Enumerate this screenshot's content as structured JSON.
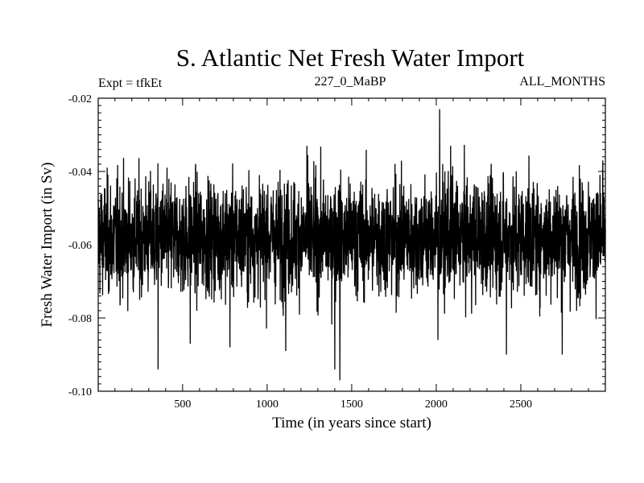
{
  "chart_data": {
    "type": "line",
    "title": "S. Atlantic Net Fresh Water Import",
    "subtitle": "227_0_MaBP",
    "experiment_label": "Expt = tfkEt",
    "months_label": "ALL_MONTHS",
    "xlabel": "Time (in years since start)",
    "ylabel": "Fresh Water Import (in Sv)",
    "xlim": [
      1,
      3000
    ],
    "ylim": [
      -0.1,
      -0.02
    ],
    "x_ticks": [
      500,
      1000,
      1500,
      2000,
      2500
    ],
    "y_ticks": [
      -0.02,
      -0.04,
      -0.06,
      -0.08,
      -0.1
    ],
    "y_tick_labels": [
      "-0.02",
      "-0.04",
      "-0.06",
      "-0.08",
      "-0.10"
    ],
    "grid": false,
    "series": [
      {
        "color": "#000000",
        "mean": -0.058,
        "typical_range": [
          -0.075,
          -0.042
        ],
        "n_points": 3000,
        "notable_points": [
          {
            "x": 355,
            "y": -0.094
          },
          {
            "x": 545,
            "y": -0.087
          },
          {
            "x": 780,
            "y": -0.088
          },
          {
            "x": 1110,
            "y": -0.089
          },
          {
            "x": 1235,
            "y": -0.033
          },
          {
            "x": 1400,
            "y": -0.094
          },
          {
            "x": 1430,
            "y": -0.097
          },
          {
            "x": 2010,
            "y": -0.086
          },
          {
            "x": 2020,
            "y": -0.023
          },
          {
            "x": 2085,
            "y": -0.033
          },
          {
            "x": 2415,
            "y": -0.09
          },
          {
            "x": 2745,
            "y": -0.09
          },
          {
            "x": 2985,
            "y": -0.037
          }
        ]
      }
    ]
  }
}
